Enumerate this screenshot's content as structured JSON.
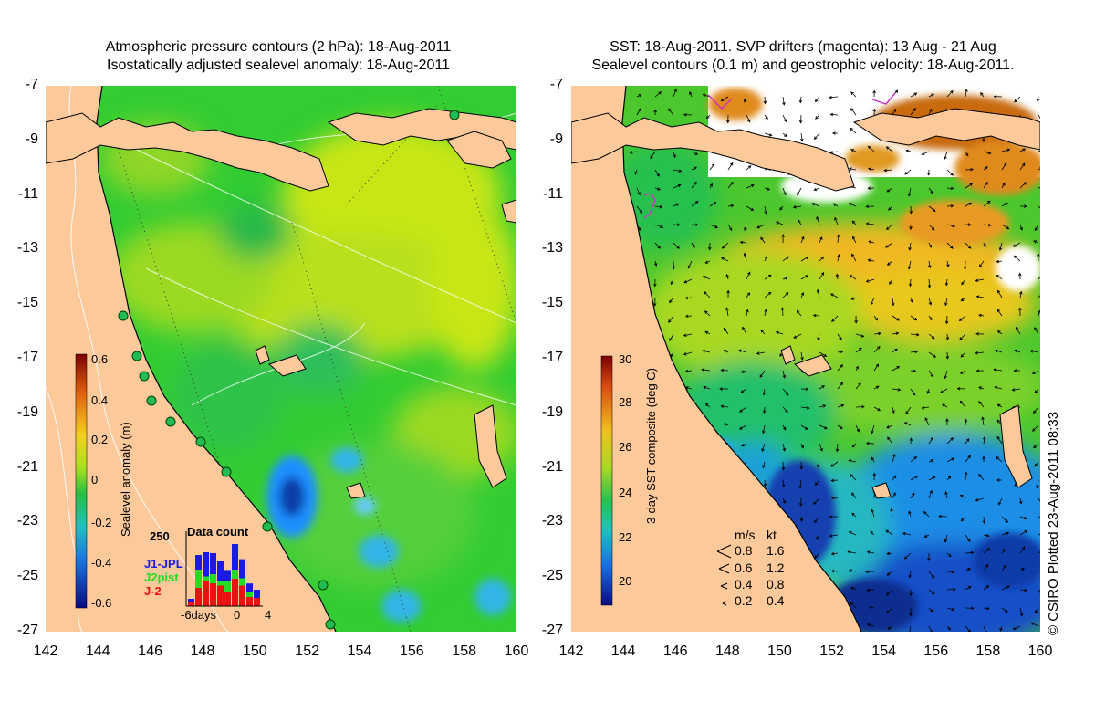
{
  "left_panel": {
    "title_line1": "Atmospheric pressure contours (2 hPa): 18-Aug-2011",
    "title_line2": "Isostatically adjusted sealevel anomaly: 18-Aug-2011",
    "colorbar": {
      "label": "Sealevel anomaly (m)",
      "ticks": [
        "0.6",
        "0.4",
        "0.2",
        "0",
        "-0.2",
        "-0.4",
        "-0.6"
      ],
      "range": [
        -0.6,
        0.6
      ]
    },
    "data_count": {
      "title": "Data count",
      "y_tick": "250",
      "x_ticks": [
        "-6days",
        "0",
        "4"
      ],
      "series": [
        {
          "name": "J1-JPL",
          "color": "#1a1ae6"
        },
        {
          "name": "J2pist",
          "color": "#22dd22"
        },
        {
          "name": "J-2",
          "color": "#ee1111"
        }
      ]
    }
  },
  "right_panel": {
    "title_line1": "SST: 18-Aug-2011. SVP drifters (magenta): 13 Aug - 21 Aug",
    "title_line2": "Sealevel contours (0.1 m) and geostrophic velocity: 18-Aug-2011.",
    "colorbar": {
      "label": "3-day SST composite (deg C)",
      "ticks": [
        "30",
        "28",
        "26",
        "24",
        "22",
        "20"
      ],
      "range": [
        19,
        30
      ]
    },
    "velocity_legend": {
      "header_ms": "m/s",
      "header_kt": "kt",
      "rows": [
        {
          "ms": "0.8",
          "kt": "1.6"
        },
        {
          "ms": "0.6",
          "kt": "1.2"
        },
        {
          "ms": "0.4",
          "kt": "0.8"
        },
        {
          "ms": "0.2",
          "kt": "0.4"
        }
      ]
    }
  },
  "axes": {
    "lat_ticks": [
      "-7",
      "-9",
      "-11",
      "-13",
      "-15",
      "-17",
      "-19",
      "-21",
      "-23",
      "-25",
      "-27"
    ],
    "lon_ticks": [
      "142",
      "144",
      "146",
      "148",
      "150",
      "152",
      "154",
      "156",
      "158",
      "160"
    ],
    "lat_range": [
      -27,
      -7
    ],
    "lon_range": [
      142,
      160
    ]
  },
  "colors": {
    "land": "#fbc99a",
    "sla_green": "#33cc33",
    "sla_yellow": "#c8e619",
    "sla_blue": "#1e90ff",
    "sst_green": "#4cc72e",
    "sst_orange": "#e08a1e",
    "sst_blue": "#1a6ee6",
    "coast": "#000000"
  },
  "copyright": "© CSIRO Plotted 23-Aug-2011 08:33"
}
